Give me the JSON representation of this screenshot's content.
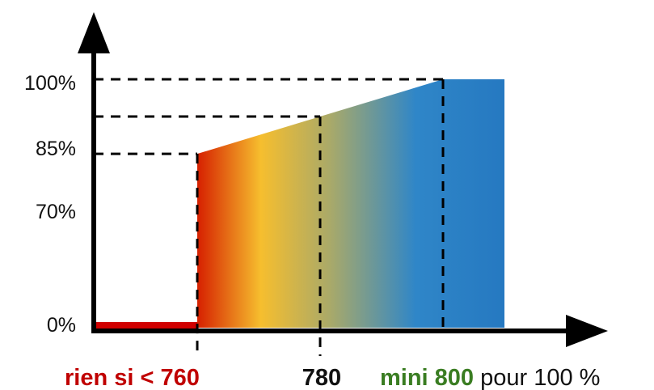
{
  "chart_data": {
    "type": "area",
    "title": "",
    "xlabel": "",
    "ylabel": "",
    "ylim": [
      0,
      100
    ],
    "series": [
      {
        "x": [
          750,
          760
        ],
        "y": [
          0,
          0
        ]
      },
      {
        "x": [
          760,
          780,
          800,
          810
        ],
        "y": [
          70,
          85,
          100,
          100
        ]
      }
    ],
    "y_ticks": [
      "0%",
      "70%",
      "85%",
      "100%"
    ],
    "x_annotations": {
      "low": {
        "parts": [
          "rien si < 760"
        ],
        "color": "#c00000"
      },
      "mid": {
        "parts": [
          "780"
        ],
        "color": "#111111"
      },
      "high": {
        "parts": [
          "mini 800",
          " pour 100 %"
        ],
        "colors": [
          "#3a7d22",
          "#111111"
        ]
      }
    },
    "gradient_colors": [
      "#d62000",
      "#f6be2e",
      "#a8a96a",
      "#2f86c8",
      "#2172bd"
    ],
    "zero_line_color": "#d00000"
  }
}
